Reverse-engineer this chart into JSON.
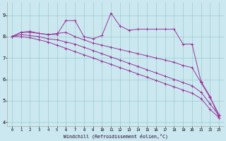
{
  "xlabel": "Windchill (Refroidissement éolien,°C)",
  "bg_color": "#cbe8f0",
  "line_color": "#993399",
  "grid_color": "#99cccc",
  "xlim": [
    -0.5,
    23.5
  ],
  "ylim": [
    3.8,
    9.6
  ],
  "xticks": [
    0,
    1,
    2,
    3,
    4,
    5,
    6,
    7,
    8,
    9,
    10,
    11,
    12,
    13,
    14,
    15,
    16,
    17,
    18,
    19,
    20,
    21,
    22,
    23
  ],
  "yticks": [
    4,
    5,
    6,
    7,
    8,
    9
  ],
  "line1_x": [
    0,
    1,
    2,
    3,
    4,
    5,
    6,
    7,
    8,
    9,
    10,
    11,
    12,
    13,
    14,
    15,
    16,
    17,
    18,
    19,
    20,
    21,
    22,
    23
  ],
  "line1_y": [
    8.0,
    8.2,
    8.2,
    8.15,
    8.1,
    8.1,
    8.75,
    8.75,
    8.0,
    7.9,
    8.05,
    9.1,
    8.5,
    8.3,
    8.35,
    8.35,
    8.35,
    8.35,
    8.35,
    7.65,
    7.65,
    5.9,
    5.2,
    4.2
  ],
  "line2_x": [
    0,
    1,
    2,
    3,
    4,
    5,
    6,
    7,
    8,
    9,
    10,
    11,
    12,
    13,
    14,
    15,
    16,
    17,
    18,
    19,
    20,
    21,
    22,
    23
  ],
  "line2_y": [
    8.0,
    8.2,
    8.25,
    8.15,
    8.1,
    8.15,
    8.2,
    8.0,
    7.85,
    7.7,
    7.6,
    7.5,
    7.4,
    7.3,
    7.2,
    7.1,
    7.0,
    6.9,
    6.8,
    6.65,
    6.55,
    5.85,
    5.15,
    4.35
  ],
  "line3_x": [
    0,
    1,
    2,
    3,
    4,
    5,
    6,
    7,
    8,
    9,
    10,
    11,
    12,
    13,
    14,
    15,
    16,
    17,
    18,
    19,
    20,
    21,
    22,
    23
  ],
  "line3_y": [
    8.0,
    8.1,
    8.05,
    8.0,
    7.9,
    7.85,
    7.75,
    7.65,
    7.5,
    7.35,
    7.2,
    7.05,
    6.9,
    6.75,
    6.6,
    6.45,
    6.3,
    6.15,
    6.0,
    5.85,
    5.7,
    5.4,
    4.85,
    4.3
  ],
  "line4_x": [
    0,
    1,
    2,
    3,
    4,
    5,
    6,
    7,
    8,
    9,
    10,
    11,
    12,
    13,
    14,
    15,
    16,
    17,
    18,
    19,
    20,
    21,
    22,
    23
  ],
  "line4_y": [
    8.0,
    8.0,
    7.95,
    7.85,
    7.75,
    7.6,
    7.45,
    7.3,
    7.15,
    7.0,
    6.85,
    6.7,
    6.55,
    6.4,
    6.25,
    6.1,
    5.95,
    5.8,
    5.65,
    5.5,
    5.35,
    5.1,
    4.6,
    4.2
  ]
}
